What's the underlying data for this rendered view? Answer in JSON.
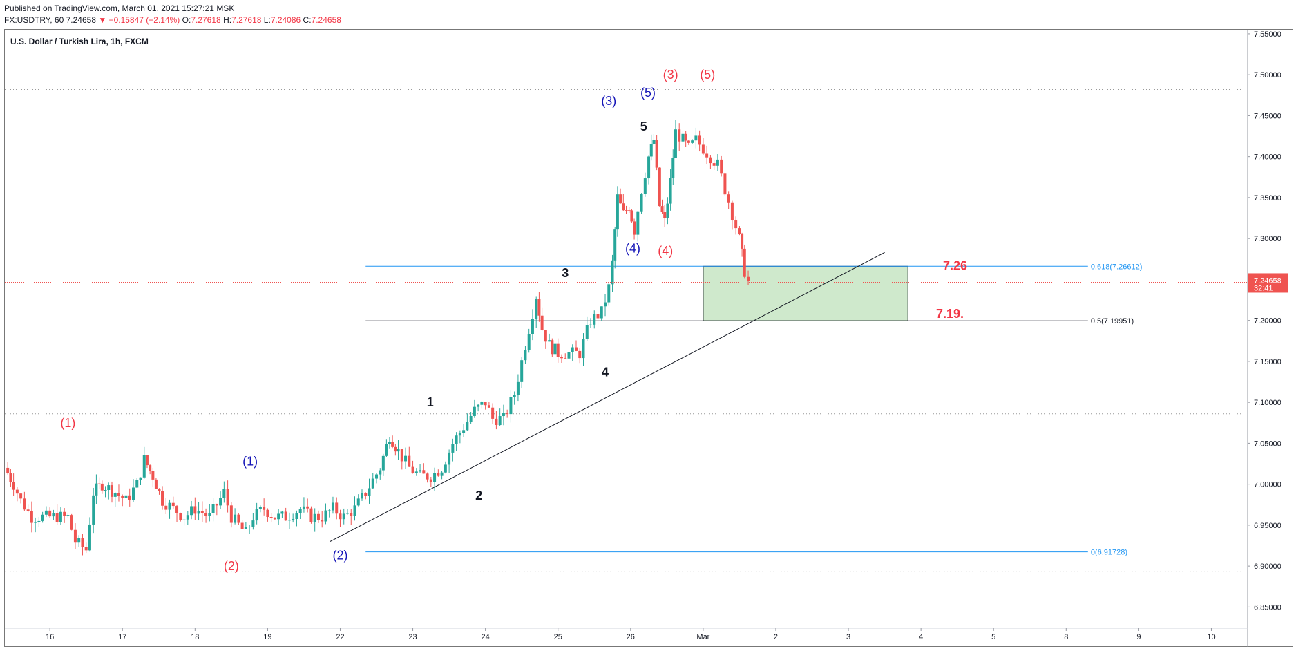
{
  "header": {
    "published": "Published on TradingView.com, March 01, 2021 15:27:21 MSK",
    "symbol": "FX:USDTRY, 60",
    "last": "7.24658",
    "change": "▼ −0.15847 (−2.14%)",
    "o_label": "O:",
    "o_value": "7.27618",
    "h_label": "H:",
    "h_value": "7.27618",
    "l_label": "L:",
    "l_value": "7.24086",
    "c_label": "C:",
    "c_value": "7.24658"
  },
  "colors": {
    "up": "#26a69a",
    "down": "#ef5350",
    "fib": "#2196f3",
    "blue_label": "#1515b8",
    "red_label": "#f23645"
  },
  "chart_data": {
    "type": "candlestick",
    "title": "U.S. Dollar / Turkish Lira, 1h, FXCM",
    "ylim": [
      6.825,
      7.555
    ],
    "y_ticks": [
      "7.55000",
      "7.50000",
      "7.45000",
      "7.40000",
      "7.35000",
      "7.30000",
      "7.25000",
      "7.20000",
      "7.15000",
      "7.10000",
      "7.05000",
      "7.00000",
      "6.95000",
      "6.90000",
      "6.85000"
    ],
    "x_ticks": [
      "16",
      "17",
      "18",
      "19",
      "22",
      "23",
      "24",
      "25",
      "26",
      "Mar",
      "2",
      "3",
      "4",
      "5",
      "8",
      "9",
      "10"
    ],
    "x_tick_positions": [
      0,
      1,
      2,
      3,
      4,
      5,
      6,
      7,
      8,
      9,
      10,
      11,
      12,
      13,
      14,
      15,
      16
    ],
    "xlim": [
      -0.62,
      16.5
    ],
    "price_path": [
      [
        -0.62,
        7.02
      ],
      [
        -0.5,
        7.0
      ],
      [
        -0.4,
        6.98
      ],
      [
        -0.25,
        6.96
      ],
      [
        -0.1,
        6.96
      ],
      [
        0.1,
        6.96
      ],
      [
        0.25,
        6.96
      ],
      [
        0.35,
        6.93
      ],
      [
        0.5,
        6.92
      ],
      [
        0.6,
        6.99
      ],
      [
        0.72,
        7.0
      ],
      [
        0.9,
        6.99
      ],
      [
        1.05,
        6.98
      ],
      [
        1.2,
        7.0
      ],
      [
        1.3,
        7.03
      ],
      [
        1.42,
        7.01
      ],
      [
        1.55,
        6.98
      ],
      [
        1.7,
        6.97
      ],
      [
        1.85,
        6.96
      ],
      [
        2.0,
        6.97
      ],
      [
        2.2,
        6.96
      ],
      [
        2.4,
        6.99
      ],
      [
        2.5,
        6.96
      ],
      [
        2.6,
        6.95
      ],
      [
        2.7,
        6.94
      ],
      [
        2.8,
        6.96
      ],
      [
        2.95,
        6.97
      ],
      [
        3.1,
        6.96
      ],
      [
        3.25,
        6.96
      ],
      [
        3.45,
        6.97
      ],
      [
        3.6,
        6.96
      ],
      [
        3.75,
        6.96
      ],
      [
        3.9,
        6.97
      ],
      [
        4.05,
        6.96
      ],
      [
        4.2,
        6.97
      ],
      [
        4.35,
        6.99
      ],
      [
        4.55,
        7.02
      ],
      [
        4.68,
        7.06
      ],
      [
        4.8,
        7.04
      ],
      [
        4.95,
        7.02
      ],
      [
        5.1,
        7.01
      ],
      [
        5.25,
        7.01
      ],
      [
        5.4,
        7.02
      ],
      [
        5.55,
        7.05
      ],
      [
        5.7,
        7.07
      ],
      [
        5.85,
        7.09
      ],
      [
        6.0,
        7.1
      ],
      [
        6.1,
        7.08
      ],
      [
        6.25,
        7.08
      ],
      [
        6.4,
        7.11
      ],
      [
        6.5,
        7.15
      ],
      [
        6.6,
        7.19
      ],
      [
        6.7,
        7.23
      ],
      [
        6.78,
        7.19
      ],
      [
        6.88,
        7.17
      ],
      [
        7.0,
        7.16
      ],
      [
        7.15,
        7.16
      ],
      [
        7.3,
        7.16
      ],
      [
        7.45,
        7.2
      ],
      [
        7.6,
        7.21
      ],
      [
        7.7,
        7.24
      ],
      [
        7.75,
        7.27
      ],
      [
        7.82,
        7.35
      ],
      [
        7.9,
        7.33
      ],
      [
        7.98,
        7.34
      ],
      [
        8.05,
        7.31
      ],
      [
        8.15,
        7.36
      ],
      [
        8.25,
        7.4
      ],
      [
        8.32,
        7.42
      ],
      [
        8.4,
        7.34
      ],
      [
        8.47,
        7.32
      ],
      [
        8.55,
        7.37
      ],
      [
        8.62,
        7.43
      ],
      [
        8.72,
        7.42
      ],
      [
        8.8,
        7.41
      ],
      [
        8.9,
        7.42
      ],
      [
        9.0,
        7.41
      ],
      [
        9.1,
        7.4
      ],
      [
        9.2,
        7.39
      ],
      [
        9.3,
        7.36
      ],
      [
        9.4,
        7.33
      ],
      [
        9.5,
        7.3
      ],
      [
        9.57,
        7.26
      ],
      [
        9.62,
        7.247
      ]
    ],
    "current_price": {
      "value": 7.24658,
      "label": "7.24658",
      "countdown": "32:41"
    },
    "fib_levels": [
      {
        "label": "0.618(7.26612)",
        "value": 7.26612,
        "color": "#2196f3"
      },
      {
        "label": "0.5(7.19951)",
        "value": 7.19951,
        "color": "#131722"
      },
      {
        "label": "0(6.91728)",
        "value": 6.91728,
        "color": "#2196f3"
      }
    ],
    "horizontal_dotted": [
      7.482,
      7.086,
      6.893
    ],
    "target_zone": {
      "x0": 9.0,
      "x1": 11.82,
      "y0": 7.19951,
      "y1": 7.26612
    },
    "trendline": [
      [
        3.86,
        6.93
      ],
      [
        11.5,
        7.283
      ]
    ],
    "zone_labels": [
      "7.26",
      "7.19."
    ],
    "wave_labels": [
      {
        "text": "(1)",
        "x": 0.25,
        "y": 7.075,
        "color": "red"
      },
      {
        "text": "(2)",
        "x": 2.5,
        "y": 6.9,
        "color": "red"
      },
      {
        "text": "(3)",
        "x": 8.55,
        "y": 7.5,
        "color": "red"
      },
      {
        "text": "(4)",
        "x": 8.48,
        "y": 7.285,
        "color": "red"
      },
      {
        "text": "(5)",
        "x": 9.06,
        "y": 7.5,
        "color": "red"
      },
      {
        "text": "(1)",
        "x": 2.76,
        "y": 7.028,
        "color": "blue"
      },
      {
        "text": "(2)",
        "x": 4.0,
        "y": 6.913,
        "color": "blue"
      },
      {
        "text": "(3)",
        "x": 7.7,
        "y": 7.468,
        "color": "blue"
      },
      {
        "text": "(4)",
        "x": 8.03,
        "y": 7.288,
        "color": "blue"
      },
      {
        "text": "(5)",
        "x": 8.24,
        "y": 7.478,
        "color": "blue"
      },
      {
        "text": "1",
        "x": 5.24,
        "y": 7.1,
        "color": "black"
      },
      {
        "text": "2",
        "x": 5.91,
        "y": 6.986,
        "color": "black"
      },
      {
        "text": "3",
        "x": 7.1,
        "y": 7.258,
        "color": "black"
      },
      {
        "text": "4",
        "x": 7.65,
        "y": 7.137,
        "color": "black"
      },
      {
        "text": "5",
        "x": 8.18,
        "y": 7.437,
        "color": "black"
      }
    ]
  }
}
